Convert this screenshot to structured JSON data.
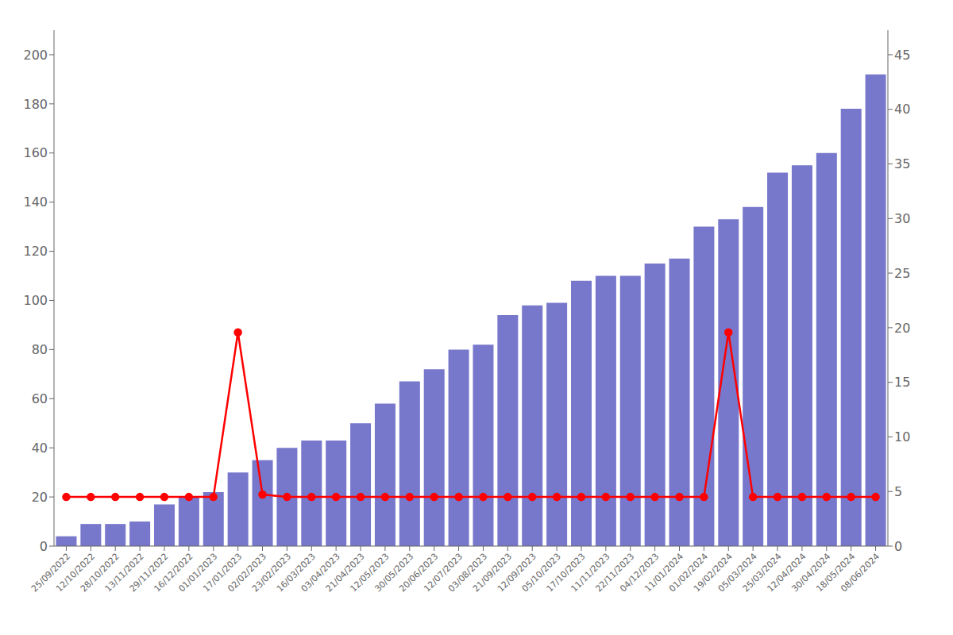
{
  "chart_data": {
    "type": "bar",
    "categories": [
      "25/09/2022",
      "12/10/2022",
      "28/10/2022",
      "13/11/2022",
      "29/11/2022",
      "16/12/2022",
      "01/01/2023",
      "17/01/2023",
      "02/02/2023",
      "23/02/2023",
      "16/03/2023",
      "03/04/2023",
      "21/04/2023",
      "12/05/2023",
      "30/05/2023",
      "20/06/2023",
      "12/07/2023",
      "03/08/2023",
      "21/09/2023",
      "12/09/2023",
      "05/10/2023",
      "17/10/2023",
      "11/11/2023",
      "22/11/2023",
      "04/12/2023",
      "11/01/2024",
      "01/02/2024",
      "19/02/2024",
      "05/03/2024",
      "25/03/2024",
      "12/04/2024",
      "30/04/2024",
      "18/05/2024",
      "08/06/2024"
    ],
    "series": [
      {
        "type": "bar",
        "color": "#7777cc",
        "values": [
          4,
          9,
          9,
          10,
          17,
          20,
          22,
          30,
          35,
          40,
          43,
          43,
          50,
          58,
          67,
          72,
          80,
          82,
          94,
          98,
          99,
          108,
          110,
          110,
          115,
          117,
          130,
          133,
          138,
          152,
          155,
          160,
          178,
          192
        ]
      },
      {
        "type": "line",
        "color": "#ff0000",
        "marker": "circle",
        "values": [
          20,
          20,
          20,
          20,
          20,
          20,
          20,
          87,
          21,
          20,
          20,
          20,
          20,
          20,
          20,
          20,
          20,
          20,
          20,
          20,
          20,
          20,
          20,
          20,
          20,
          20,
          20,
          87,
          20,
          20,
          20,
          20,
          20,
          20
        ]
      }
    ],
    "ylim": [
      0,
      210
    ],
    "yticks": [
      0,
      20,
      40,
      60,
      80,
      100,
      120,
      140,
      160,
      180,
      200
    ],
    "y2lim": [
      0,
      47.25
    ],
    "y2ticks": [
      0,
      5,
      10,
      15,
      20,
      25,
      30,
      35,
      40,
      45
    ],
    "grid": false
  }
}
